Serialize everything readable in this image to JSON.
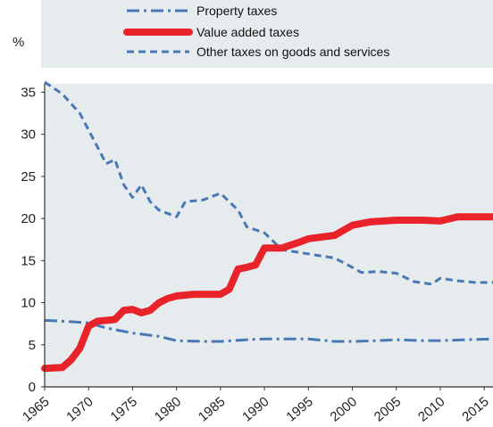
{
  "chart_data": {
    "type": "line",
    "unit": "%",
    "xlim": [
      1965,
      2016
    ],
    "ylim": [
      0,
      36
    ],
    "x_ticks": [
      "1965",
      "1970",
      "1975",
      "1980",
      "1985",
      "1990",
      "1995",
      "2000",
      "2005",
      "2010",
      "2015"
    ],
    "y_ticks": [
      "0",
      "5",
      "10",
      "15",
      "20",
      "25",
      "30",
      "35"
    ],
    "grid": false,
    "legend_position": "top",
    "background_color": "#e6ecee",
    "series": [
      {
        "name": "Property taxes",
        "color": "#4a78b5",
        "style": "dash-dot",
        "points": [
          [
            1965,
            7.9
          ],
          [
            1967,
            7.8
          ],
          [
            1970,
            7.6
          ],
          [
            1972,
            7.0
          ],
          [
            1975,
            6.4
          ],
          [
            1978,
            6.0
          ],
          [
            1980,
            5.5
          ],
          [
            1983,
            5.4
          ],
          [
            1985,
            5.4
          ],
          [
            1988,
            5.6
          ],
          [
            1990,
            5.7
          ],
          [
            1993,
            5.7
          ],
          [
            1995,
            5.7
          ],
          [
            1998,
            5.4
          ],
          [
            2000,
            5.4
          ],
          [
            2003,
            5.5
          ],
          [
            2005,
            5.6
          ],
          [
            2008,
            5.5
          ],
          [
            2010,
            5.5
          ],
          [
            2013,
            5.6
          ],
          [
            2016,
            5.7
          ]
        ]
      },
      {
        "name": "Value added taxes",
        "color": "#e8232a",
        "style": "solid",
        "points": [
          [
            1965,
            2.2
          ],
          [
            1967,
            2.3
          ],
          [
            1968,
            3.2
          ],
          [
            1969,
            4.6
          ],
          [
            1970,
            7.2
          ],
          [
            1971,
            7.8
          ],
          [
            1972,
            7.9
          ],
          [
            1973,
            8.0
          ],
          [
            1974,
            9.1
          ],
          [
            1975,
            9.2
          ],
          [
            1976,
            8.8
          ],
          [
            1977,
            9.1
          ],
          [
            1978,
            10.0
          ],
          [
            1979,
            10.5
          ],
          [
            1980,
            10.8
          ],
          [
            1982,
            11.0
          ],
          [
            1984,
            11.0
          ],
          [
            1985,
            11.0
          ],
          [
            1986,
            11.6
          ],
          [
            1987,
            14.0
          ],
          [
            1988,
            14.2
          ],
          [
            1989,
            14.5
          ],
          [
            1990,
            16.5
          ],
          [
            1992,
            16.5
          ],
          [
            1994,
            17.2
          ],
          [
            1995,
            17.6
          ],
          [
            1998,
            18.0
          ],
          [
            2000,
            19.2
          ],
          [
            2002,
            19.6
          ],
          [
            2005,
            19.8
          ],
          [
            2008,
            19.8
          ],
          [
            2010,
            19.7
          ],
          [
            2012,
            20.2
          ],
          [
            2014,
            20.2
          ],
          [
            2016,
            20.2
          ]
        ]
      },
      {
        "name": "Other taxes on goods and services",
        "color": "#4a78b5",
        "style": "dashed",
        "points": [
          [
            1965,
            36.2
          ],
          [
            1967,
            34.8
          ],
          [
            1969,
            32.5
          ],
          [
            1970,
            30.5
          ],
          [
            1971,
            28.5
          ],
          [
            1972,
            26.5
          ],
          [
            1973,
            27.0
          ],
          [
            1974,
            24.0
          ],
          [
            1975,
            22.5
          ],
          [
            1976,
            24.0
          ],
          [
            1977,
            22.0
          ],
          [
            1978,
            21.0
          ],
          [
            1980,
            20.2
          ],
          [
            1981,
            22.0
          ],
          [
            1983,
            22.2
          ],
          [
            1985,
            23.0
          ],
          [
            1987,
            21.0
          ],
          [
            1988,
            19.0
          ],
          [
            1990,
            18.3
          ],
          [
            1992,
            16.3
          ],
          [
            1995,
            15.8
          ],
          [
            1998,
            15.3
          ],
          [
            2000,
            14.2
          ],
          [
            2001,
            13.6
          ],
          [
            2003,
            13.7
          ],
          [
            2005,
            13.5
          ],
          [
            2007,
            12.5
          ],
          [
            2009,
            12.2
          ],
          [
            2010,
            12.9
          ],
          [
            2012,
            12.6
          ],
          [
            2014,
            12.4
          ],
          [
            2016,
            12.4
          ]
        ]
      }
    ]
  }
}
